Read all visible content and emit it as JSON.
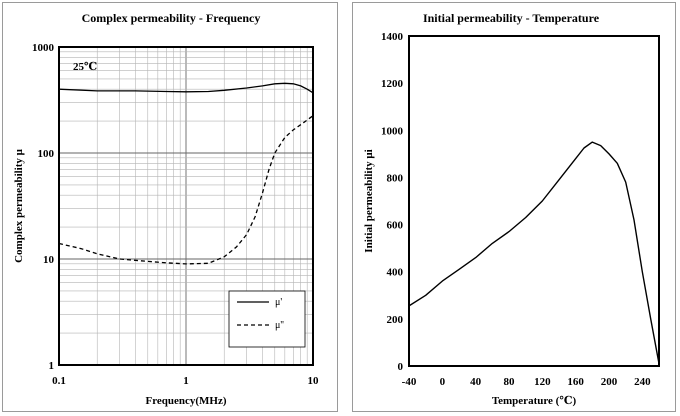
{
  "chart_data": [
    {
      "type": "line",
      "title": "Complex permeability - Frequency",
      "xlabel": "Frequency(MHz)",
      "ylabel": "Complex permeability μ",
      "x_scale": "log",
      "y_scale": "log",
      "xlim": [
        0.1,
        10
      ],
      "ylim": [
        1,
        1000
      ],
      "x_ticks": [
        {
          "v": 0.1,
          "label": "0.1"
        },
        {
          "v": 1,
          "label": "1"
        },
        {
          "v": 10,
          "label": "10"
        }
      ],
      "y_ticks": [
        {
          "v": 1,
          "label": "1"
        },
        {
          "v": 10,
          "label": "10"
        },
        {
          "v": 100,
          "label": "100"
        },
        {
          "v": 1000,
          "label": "1000"
        }
      ],
      "grid": true,
      "legend_position": "bottom-right",
      "annotation": "25℃",
      "series": [
        {
          "name": "μ'",
          "style": "solid",
          "x": [
            0.1,
            0.2,
            0.4,
            0.7,
            1.0,
            1.5,
            2.0,
            3.0,
            4.0,
            5.0,
            6.0,
            7.0,
            8.0,
            9.0,
            10.0
          ],
          "y": [
            400,
            385,
            385,
            380,
            378,
            380,
            390,
            410,
            430,
            450,
            455,
            450,
            430,
            400,
            370
          ]
        },
        {
          "name": "μ''",
          "style": "dashed",
          "x": [
            0.1,
            0.15,
            0.2,
            0.3,
            0.5,
            0.7,
            1.0,
            1.5,
            2.0,
            2.5,
            3.0,
            3.5,
            4.0,
            4.5,
            5.0,
            6.0,
            7.0,
            8.0,
            9.0,
            10.0
          ],
          "y": [
            14,
            12.5,
            11.2,
            10,
            9.5,
            9.2,
            9.0,
            9.1,
            10.5,
            13,
            17,
            25,
            42,
            70,
            100,
            140,
            165,
            185,
            205,
            225
          ]
        }
      ]
    },
    {
      "type": "line",
      "title": "Initial permeability - Temperature",
      "xlabel": "Temperature (℃)",
      "ylabel": "Initial permeability μi",
      "xlim": [
        -40,
        260
      ],
      "ylim": [
        0,
        1400
      ],
      "x_ticks": [
        -40,
        0,
        40,
        80,
        120,
        160,
        200,
        240
      ],
      "y_ticks": [
        0,
        200,
        400,
        600,
        800,
        1000,
        1200,
        1400
      ],
      "grid": false,
      "series": [
        {
          "style": "solid",
          "x": [
            -40,
            -20,
            0,
            20,
            40,
            60,
            80,
            100,
            120,
            140,
            160,
            170,
            180,
            190,
            200,
            210,
            220,
            230,
            240,
            250,
            260
          ],
          "y": [
            255,
            300,
            360,
            410,
            460,
            520,
            570,
            630,
            700,
            790,
            880,
            925,
            950,
            935,
            900,
            860,
            780,
            620,
            400,
            200,
            10
          ]
        }
      ]
    }
  ]
}
